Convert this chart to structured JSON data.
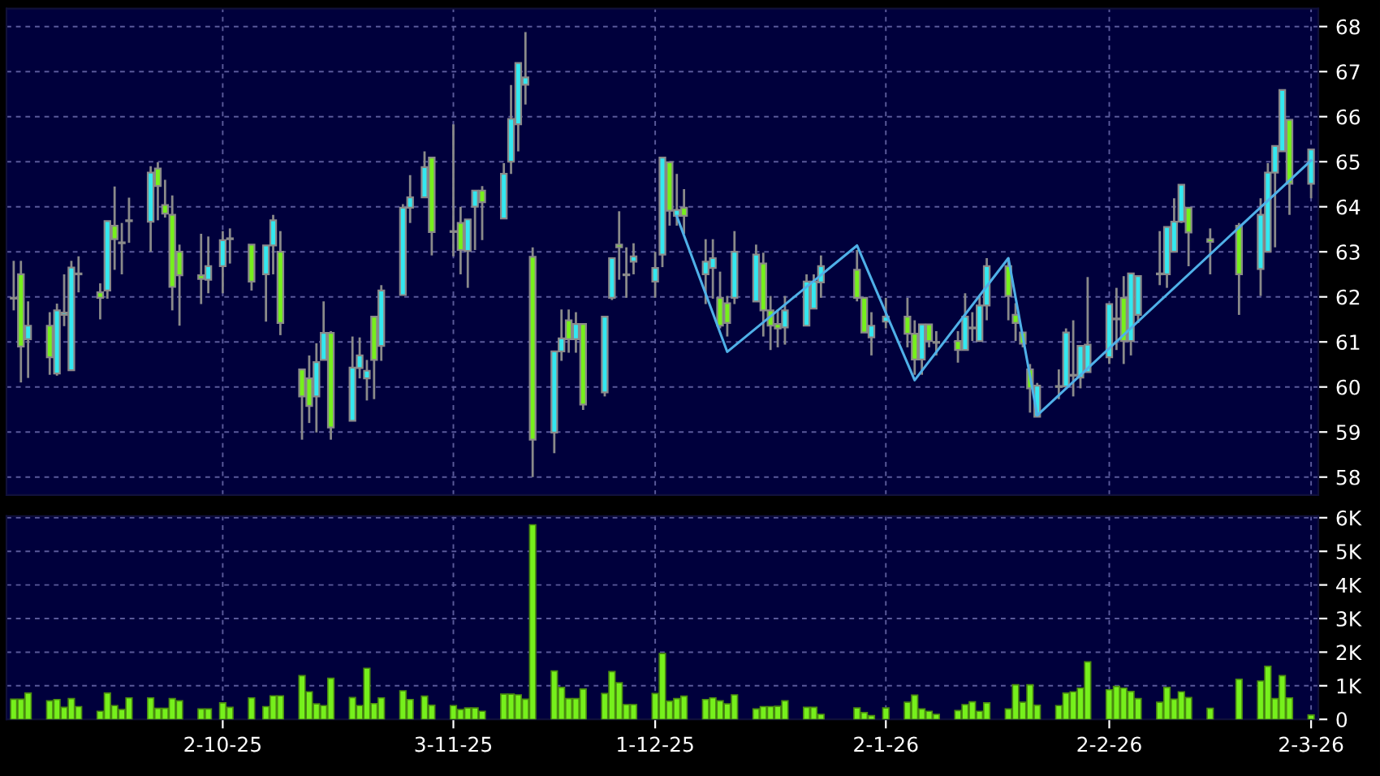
{
  "chart_data": [
    {
      "type": "candlestick",
      "x": [
        "2025-09-03",
        "2025-09-04",
        "2025-09-05",
        "2025-09-08",
        "2025-09-09",
        "2025-09-10",
        "2025-09-11",
        "2025-09-12",
        "2025-09-15",
        "2025-09-16",
        "2025-09-17",
        "2025-09-18",
        "2025-09-19",
        "2025-09-22",
        "2025-09-23",
        "2025-09-24",
        "2025-09-25",
        "2025-09-26",
        "2025-09-29",
        "2025-09-30",
        "2025-10-02",
        "2025-10-03",
        "2025-10-06",
        "2025-10-08",
        "2025-10-09",
        "2025-10-10",
        "2025-10-13",
        "2025-10-14",
        "2025-10-15",
        "2025-10-16",
        "2025-10-17",
        "2025-10-20",
        "2025-10-21",
        "2025-10-22",
        "2025-10-23",
        "2025-10-24",
        "2025-10-27",
        "2025-10-28",
        "2025-10-30",
        "2025-10-31",
        "2025-11-03",
        "2025-11-04",
        "2025-11-05",
        "2025-11-06",
        "2025-11-07",
        "2025-11-10",
        "2025-11-11",
        "2025-11-12",
        "2025-11-13",
        "2025-11-14",
        "2025-11-17",
        "2025-11-18",
        "2025-11-19",
        "2025-11-20",
        "2025-11-21",
        "2025-11-24",
        "2025-11-25",
        "2025-11-26",
        "2025-11-27",
        "2025-11-28",
        "2025-12-01",
        "2025-12-02",
        "2025-12-03",
        "2025-12-04",
        "2025-12-05",
        "2025-12-08",
        "2025-12-09",
        "2025-12-10",
        "2025-12-11",
        "2025-12-12",
        "2025-12-15",
        "2025-12-16",
        "2025-12-17",
        "2025-12-18",
        "2025-12-19",
        "2025-12-22",
        "2025-12-23",
        "2025-12-24",
        "2025-12-29",
        "2025-12-30",
        "2025-12-31",
        "2026-01-02",
        "2026-01-05",
        "2026-01-06",
        "2026-01-07",
        "2026-01-08",
        "2026-01-09",
        "2026-01-12",
        "2026-01-13",
        "2026-01-14",
        "2026-01-15",
        "2026-01-16",
        "2026-01-19",
        "2026-01-20",
        "2026-01-21",
        "2026-01-22",
        "2026-01-23",
        "2026-01-26",
        "2026-01-27",
        "2026-01-28",
        "2026-01-29",
        "2026-01-30",
        "2026-02-02",
        "2026-02-03",
        "2026-02-04",
        "2026-02-05",
        "2026-02-06",
        "2026-02-09",
        "2026-02-10",
        "2026-02-11",
        "2026-02-12",
        "2026-02-13",
        "2026-02-16",
        "2026-02-20",
        "2026-02-23",
        "2026-02-24",
        "2026-02-25",
        "2026-02-26",
        "2026-02-27",
        "2026-03-02"
      ],
      "ohlc": [
        [
          61.96,
          62.8,
          61.7,
          61.98
        ],
        [
          62.5,
          62.8,
          60.1,
          60.9
        ],
        [
          61.06,
          61.9,
          60.2,
          61.36
        ],
        [
          61.36,
          61.66,
          60.27,
          60.66
        ],
        [
          60.3,
          61.85,
          60.25,
          61.7
        ],
        [
          61.6,
          62.5,
          61.35,
          61.65
        ],
        [
          60.37,
          62.8,
          60.37,
          62.65
        ],
        [
          62.5,
          62.9,
          62.1,
          62.52
        ],
        [
          62.1,
          62.3,
          61.5,
          61.98
        ],
        [
          62.14,
          63.68,
          61.96,
          63.68
        ],
        [
          63.58,
          64.45,
          62.6,
          63.28
        ],
        [
          63.19,
          63.64,
          62.5,
          63.2
        ],
        [
          63.68,
          64.2,
          63.2,
          63.7
        ],
        [
          63.67,
          64.9,
          63.0,
          64.76
        ],
        [
          64.85,
          64.99,
          63.7,
          64.46
        ],
        [
          64.04,
          64.6,
          63.76,
          63.85
        ],
        [
          63.82,
          64.25,
          61.7,
          62.22
        ],
        [
          63.0,
          63.16,
          61.36,
          62.48
        ],
        [
          62.48,
          63.4,
          61.84,
          62.4
        ],
        [
          62.38,
          63.34,
          62.08,
          62.68
        ],
        [
          62.68,
          63.46,
          62.08,
          63.26
        ],
        [
          63.28,
          63.52,
          62.74,
          63.29
        ],
        [
          63.16,
          63.16,
          62.14,
          62.34
        ],
        [
          62.5,
          63.14,
          61.45,
          63.14
        ],
        [
          63.14,
          63.82,
          62.5,
          63.7
        ],
        [
          63.0,
          63.46,
          61.15,
          61.42
        ],
        [
          60.39,
          60.39,
          58.83,
          59.79
        ],
        [
          60.19,
          60.7,
          59.2,
          59.58
        ],
        [
          59.79,
          60.97,
          58.99,
          60.55
        ],
        [
          60.6,
          61.9,
          60.6,
          61.2
        ],
        [
          61.2,
          61.24,
          58.83,
          59.1
        ],
        [
          59.25,
          61.12,
          59.25,
          60.43
        ],
        [
          60.42,
          61.1,
          60.19,
          60.7
        ],
        [
          60.19,
          60.6,
          59.7,
          60.36
        ],
        [
          61.56,
          61.56,
          59.73,
          60.6
        ],
        [
          60.91,
          62.26,
          60.58,
          62.14
        ],
        [
          62.04,
          64.06,
          62.04,
          63.98
        ],
        [
          63.98,
          64.7,
          63.64,
          64.21
        ],
        [
          64.21,
          65.23,
          64.21,
          64.88
        ],
        [
          65.09,
          65.09,
          62.92,
          63.44
        ],
        [
          63.44,
          65.83,
          62.9,
          63.45
        ],
        [
          63.64,
          64.0,
          62.5,
          63.04
        ],
        [
          63.02,
          63.72,
          62.2,
          63.72
        ],
        [
          64.0,
          64.36,
          63.04,
          64.36
        ],
        [
          64.36,
          64.46,
          63.26,
          64.1
        ],
        [
          63.74,
          64.97,
          63.74,
          64.73
        ],
        [
          65.0,
          66.7,
          64.73,
          65.95
        ],
        [
          65.83,
          67.19,
          65.23,
          67.19
        ],
        [
          66.71,
          67.88,
          66.27,
          66.87
        ],
        [
          62.89,
          63.1,
          58.0,
          58.83
        ],
        [
          58.99,
          60.79,
          58.53,
          60.79
        ],
        [
          60.79,
          61.72,
          60.58,
          61.08
        ],
        [
          61.48,
          61.72,
          60.76,
          61.06
        ],
        [
          61.06,
          61.66,
          60.76,
          61.4
        ],
        [
          61.4,
          61.4,
          59.49,
          59.61
        ],
        [
          59.88,
          61.56,
          59.79,
          61.56
        ],
        [
          61.98,
          62.86,
          61.93,
          62.86
        ],
        [
          63.16,
          63.9,
          62.38,
          63.1
        ],
        [
          62.48,
          63.1,
          61.98,
          62.49
        ],
        [
          62.78,
          63.19,
          62.5,
          62.9
        ],
        [
          62.34,
          63.0,
          61.98,
          62.64
        ],
        [
          62.94,
          65.09,
          62.66,
          65.09
        ],
        [
          64.99,
          64.99,
          63.58,
          63.91
        ],
        [
          63.8,
          64.73,
          63.58,
          63.93
        ],
        [
          63.98,
          64.39,
          63.4,
          63.8
        ],
        [
          62.5,
          63.28,
          61.84,
          62.78
        ],
        [
          62.64,
          63.28,
          61.96,
          62.86
        ],
        [
          61.98,
          62.56,
          61.3,
          61.36
        ],
        [
          61.86,
          62.02,
          61.12,
          61.42
        ],
        [
          61.98,
          63.46,
          61.84,
          63.0
        ],
        [
          61.9,
          63.16,
          61.9,
          62.94
        ],
        [
          62.74,
          62.98,
          61.12,
          61.7
        ],
        [
          61.7,
          62.02,
          60.82,
          61.36
        ],
        [
          61.4,
          61.72,
          60.88,
          61.3
        ],
        [
          61.32,
          62.02,
          60.94,
          61.7
        ],
        [
          61.36,
          62.5,
          61.36,
          62.34
        ],
        [
          61.74,
          62.5,
          61.74,
          62.34
        ],
        [
          62.32,
          62.92,
          61.98,
          62.68
        ],
        [
          62.6,
          63.04,
          61.9,
          61.98
        ],
        [
          61.98,
          61.98,
          61.21,
          61.21
        ],
        [
          61.1,
          61.66,
          60.7,
          61.36
        ],
        [
          61.45,
          61.98,
          61.3,
          61.56
        ],
        [
          61.56,
          61.98,
          60.88,
          61.18
        ],
        [
          61.18,
          61.48,
          60.27,
          60.61
        ],
        [
          60.61,
          61.39,
          60.27,
          61.39
        ],
        [
          61.39,
          61.39,
          60.88,
          61.02
        ],
        [
          61.0,
          61.24,
          60.7,
          60.98
        ],
        [
          61.02,
          61.24,
          60.54,
          60.82
        ],
        [
          60.82,
          62.08,
          60.82,
          61.56
        ],
        [
          61.3,
          61.66,
          61.02,
          61.31
        ],
        [
          61.02,
          62.02,
          61.02,
          61.81
        ],
        [
          61.81,
          62.86,
          61.48,
          62.68
        ],
        [
          62.68,
          62.86,
          61.48,
          62.02
        ],
        [
          61.6,
          61.86,
          61.02,
          61.42
        ],
        [
          61.21,
          61.21,
          60.88,
          60.96
        ],
        [
          60.39,
          60.51,
          59.43,
          59.97
        ],
        [
          59.34,
          60.09,
          59.34,
          60.03
        ],
        [
          60.0,
          60.39,
          59.73,
          60.01
        ],
        [
          60.01,
          61.3,
          60.01,
          61.21
        ],
        [
          60.25,
          61.48,
          59.79,
          60.26
        ],
        [
          60.21,
          60.91,
          59.97,
          60.91
        ],
        [
          60.33,
          62.44,
          60.33,
          60.94
        ],
        [
          60.66,
          61.84,
          60.51,
          61.84
        ],
        [
          61.5,
          62.2,
          60.82,
          61.52
        ],
        [
          61.98,
          62.46,
          60.51,
          61.02
        ],
        [
          61.02,
          62.52,
          60.7,
          62.52
        ],
        [
          61.6,
          62.46,
          61.42,
          62.46
        ],
        [
          62.5,
          63.46,
          62.26,
          62.51
        ],
        [
          62.5,
          63.55,
          62.2,
          63.55
        ],
        [
          63.0,
          64.19,
          63.0,
          63.67
        ],
        [
          63.67,
          64.49,
          63.64,
          64.49
        ],
        [
          63.98,
          63.98,
          62.68,
          63.43
        ],
        [
          63.28,
          63.52,
          62.5,
          63.22
        ],
        [
          63.58,
          63.64,
          61.6,
          62.5
        ],
        [
          62.62,
          64.19,
          62.02,
          63.82
        ],
        [
          63.0,
          64.97,
          63.0,
          64.76
        ],
        [
          64.76,
          65.35,
          63.1,
          65.35
        ],
        [
          65.23,
          66.59,
          65.23,
          66.59
        ],
        [
          65.93,
          65.93,
          63.82,
          64.51
        ],
        [
          64.51,
          65.27,
          64.19,
          65.27
        ]
      ],
      "colors": [
        "#33e8f0",
        "#76f01c",
        "#33e8f0",
        "#76f01c",
        "#33e8f0",
        "#33e8f0",
        "#33e8f0",
        "#33e8f0",
        "#76f01c",
        "#33e8f0",
        "#76f01c",
        "#33e8f0",
        "#33e8f0",
        "#33e8f0",
        "#76f01c",
        "#76f01c",
        "#76f01c",
        "#76f01c",
        "#76f01c",
        "#33e8f0",
        "#33e8f0",
        "#33e8f0",
        "#76f01c",
        "#33e8f0",
        "#33e8f0",
        "#76f01c",
        "#76f01c",
        "#76f01c",
        "#33e8f0",
        "#33e8f0",
        "#76f01c",
        "#33e8f0",
        "#33e8f0",
        "#33e8f0",
        "#76f01c",
        "#33e8f0",
        "#33e8f0",
        "#33e8f0",
        "#33e8f0",
        "#76f01c",
        "#33e8f0",
        "#76f01c",
        "#33e8f0",
        "#33e8f0",
        "#76f01c",
        "#33e8f0",
        "#33e8f0",
        "#33e8f0",
        "#33e8f0",
        "#76f01c",
        "#33e8f0",
        "#33e8f0",
        "#76f01c",
        "#33e8f0",
        "#76f01c",
        "#33e8f0",
        "#33e8f0",
        "#76f01c",
        "#33e8f0",
        "#33e8f0",
        "#33e8f0",
        "#33e8f0",
        "#76f01c",
        "#33e8f0",
        "#76f01c",
        "#33e8f0",
        "#33e8f0",
        "#76f01c",
        "#76f01c",
        "#33e8f0",
        "#33e8f0",
        "#76f01c",
        "#76f01c",
        "#76f01c",
        "#33e8f0",
        "#33e8f0",
        "#33e8f0",
        "#33e8f0",
        "#76f01c",
        "#76f01c",
        "#33e8f0",
        "#33e8f0",
        "#76f01c",
        "#76f01c",
        "#33e8f0",
        "#76f01c",
        "#76f01c",
        "#76f01c",
        "#33e8f0",
        "#33e8f0",
        "#33e8f0",
        "#33e8f0",
        "#76f01c",
        "#76f01c",
        "#76f01c",
        "#76f01c",
        "#33e8f0",
        "#33e8f0",
        "#33e8f0",
        "#33e8f0",
        "#33e8f0",
        "#33e8f0",
        "#33e8f0",
        "#33e8f0",
        "#76f01c",
        "#33e8f0",
        "#33e8f0",
        "#33e8f0",
        "#33e8f0",
        "#33e8f0",
        "#33e8f0",
        "#76f01c",
        "#76f01c",
        "#76f01c",
        "#33e8f0",
        "#33e8f0",
        "#33e8f0",
        "#33e8f0",
        "#76f01c",
        "#33e8f0"
      ],
      "series": [
        {
          "type": "line",
          "color": "#4fb0e8",
          "x": [
            "2025-12-04",
            "2025-12-11",
            "2025-12-29",
            "2026-01-06",
            "2026-01-19",
            "2026-01-23",
            "2026-03-02"
          ],
          "values": [
            63.79,
            60.78,
            63.14,
            60.15,
            62.86,
            59.37,
            65.03
          ]
        }
      ],
      "ylim": [
        57.6,
        68.4
      ],
      "yticks": [
        58,
        59,
        60,
        61,
        62,
        63,
        64,
        65,
        66,
        67,
        68
      ],
      "xlim": [
        "2025-09-02",
        "2026-03-03"
      ],
      "xticks": [
        {
          "value": "2025-10-02",
          "label": null
        },
        {
          "value": "2025-11-03",
          "label": null
        },
        {
          "value": "2025-12-01",
          "label": null
        },
        {
          "value": "2026-01-02",
          "label": null
        },
        {
          "value": "2026-02-02",
          "label": null
        },
        {
          "value": "2026-03-02",
          "label": null
        }
      ],
      "tick_labels": "y",
      "grid": true
    },
    {
      "type": "bar",
      "x": [
        "2025-09-03",
        "2025-09-04",
        "2025-09-05",
        "2025-09-08",
        "2025-09-09",
        "2025-09-10",
        "2025-09-11",
        "2025-09-12",
        "2025-09-15",
        "2025-09-16",
        "2025-09-17",
        "2025-09-18",
        "2025-09-19",
        "2025-09-22",
        "2025-09-23",
        "2025-09-24",
        "2025-09-25",
        "2025-09-26",
        "2025-09-29",
        "2025-09-30",
        "2025-10-02",
        "2025-10-03",
        "2025-10-06",
        "2025-10-08",
        "2025-10-09",
        "2025-10-10",
        "2025-10-13",
        "2025-10-14",
        "2025-10-15",
        "2025-10-16",
        "2025-10-17",
        "2025-10-20",
        "2025-10-21",
        "2025-10-22",
        "2025-10-23",
        "2025-10-24",
        "2025-10-27",
        "2025-10-28",
        "2025-10-30",
        "2025-10-31",
        "2025-11-03",
        "2025-11-04",
        "2025-11-05",
        "2025-11-06",
        "2025-11-07",
        "2025-11-10",
        "2025-11-11",
        "2025-11-12",
        "2025-11-13",
        "2025-11-14",
        "2025-11-17",
        "2025-11-18",
        "2025-11-19",
        "2025-11-20",
        "2025-11-21",
        "2025-11-24",
        "2025-11-25",
        "2025-11-26",
        "2025-11-27",
        "2025-11-28",
        "2025-12-01",
        "2025-12-02",
        "2025-12-03",
        "2025-12-04",
        "2025-12-05",
        "2025-12-08",
        "2025-12-09",
        "2025-12-10",
        "2025-12-11",
        "2025-12-12",
        "2025-12-15",
        "2025-12-16",
        "2025-12-17",
        "2025-12-18",
        "2025-12-19",
        "2025-12-22",
        "2025-12-23",
        "2025-12-24",
        "2025-12-29",
        "2025-12-30",
        "2025-12-31",
        "2026-01-02",
        "2026-01-05",
        "2026-01-06",
        "2026-01-07",
        "2026-01-08",
        "2026-01-09",
        "2026-01-12",
        "2026-01-13",
        "2026-01-14",
        "2026-01-15",
        "2026-01-16",
        "2026-01-19",
        "2026-01-20",
        "2026-01-21",
        "2026-01-22",
        "2026-01-23",
        "2026-01-26",
        "2026-01-27",
        "2026-01-28",
        "2026-01-29",
        "2026-01-30",
        "2026-02-02",
        "2026-02-03",
        "2026-02-04",
        "2026-02-05",
        "2026-02-06",
        "2026-02-09",
        "2026-02-10",
        "2026-02-11",
        "2026-02-12",
        "2026-02-13",
        "2026-02-16",
        "2026-02-20",
        "2026-02-23",
        "2026-02-24",
        "2026-02-25",
        "2026-02-26",
        "2026-02-27",
        "2026-03-02"
      ],
      "values": [
        0.6,
        0.6,
        0.78,
        0.55,
        0.59,
        0.36,
        0.62,
        0.38,
        0.24,
        0.78,
        0.41,
        0.29,
        0.64,
        0.64,
        0.33,
        0.33,
        0.62,
        0.55,
        0.31,
        0.31,
        0.49,
        0.36,
        0.64,
        0.38,
        0.7,
        0.7,
        1.3,
        0.82,
        0.46,
        0.41,
        1.22,
        0.65,
        0.41,
        1.52,
        0.47,
        0.64,
        0.85,
        0.59,
        0.69,
        0.42,
        0.41,
        0.29,
        0.34,
        0.34,
        0.24,
        0.75,
        0.75,
        0.73,
        0.6,
        5.79,
        1.44,
        0.95,
        0.62,
        0.62,
        0.9,
        0.77,
        1.42,
        1.09,
        0.44,
        0.44,
        0.77,
        1.96,
        0.54,
        0.62,
        0.69,
        0.59,
        0.64,
        0.55,
        0.46,
        0.73,
        0.31,
        0.38,
        0.38,
        0.39,
        0.55,
        0.36,
        0.36,
        0.15,
        0.34,
        0.2,
        0.11,
        0.34,
        0.51,
        0.72,
        0.31,
        0.24,
        0.15,
        0.26,
        0.44,
        0.52,
        0.24,
        0.49,
        0.31,
        1.03,
        0.51,
        1.03,
        0.42,
        0.41,
        0.78,
        0.82,
        0.93,
        1.71,
        0.88,
        0.98,
        0.93,
        0.83,
        0.62,
        0.51,
        0.95,
        0.6,
        0.82,
        0.65,
        0.33,
        1.19,
        1.14,
        1.58,
        0.62,
        1.3,
        0.64,
        0.13
      ],
      "color": "#76f01c",
      "xlim": [
        "2025-09-02",
        "2026-03-03"
      ],
      "ylim": [
        0,
        6.05
      ],
      "yticks": [
        0,
        {
          "value": 1,
          "label": "1K"
        },
        {
          "value": 2,
          "label": "2K"
        },
        {
          "value": 3,
          "label": "3K"
        },
        {
          "value": 4,
          "label": "4K"
        },
        {
          "value": 5,
          "label": "5K"
        },
        {
          "value": 6,
          "label": "6K"
        }
      ],
      "xticks": [
        {
          "value": "2025-10-02",
          "label": "2-10-25"
        },
        {
          "value": "2025-11-03",
          "label": "3-11-25"
        },
        {
          "value": "2025-12-01",
          "label": "1-12-25"
        },
        {
          "value": "2026-01-02",
          "label": "2-1-26"
        },
        {
          "value": "2026-02-02",
          "label": "2-2-26"
        },
        {
          "value": "2026-03-02",
          "label": "2-3-26"
        }
      ],
      "grid": true
    }
  ]
}
